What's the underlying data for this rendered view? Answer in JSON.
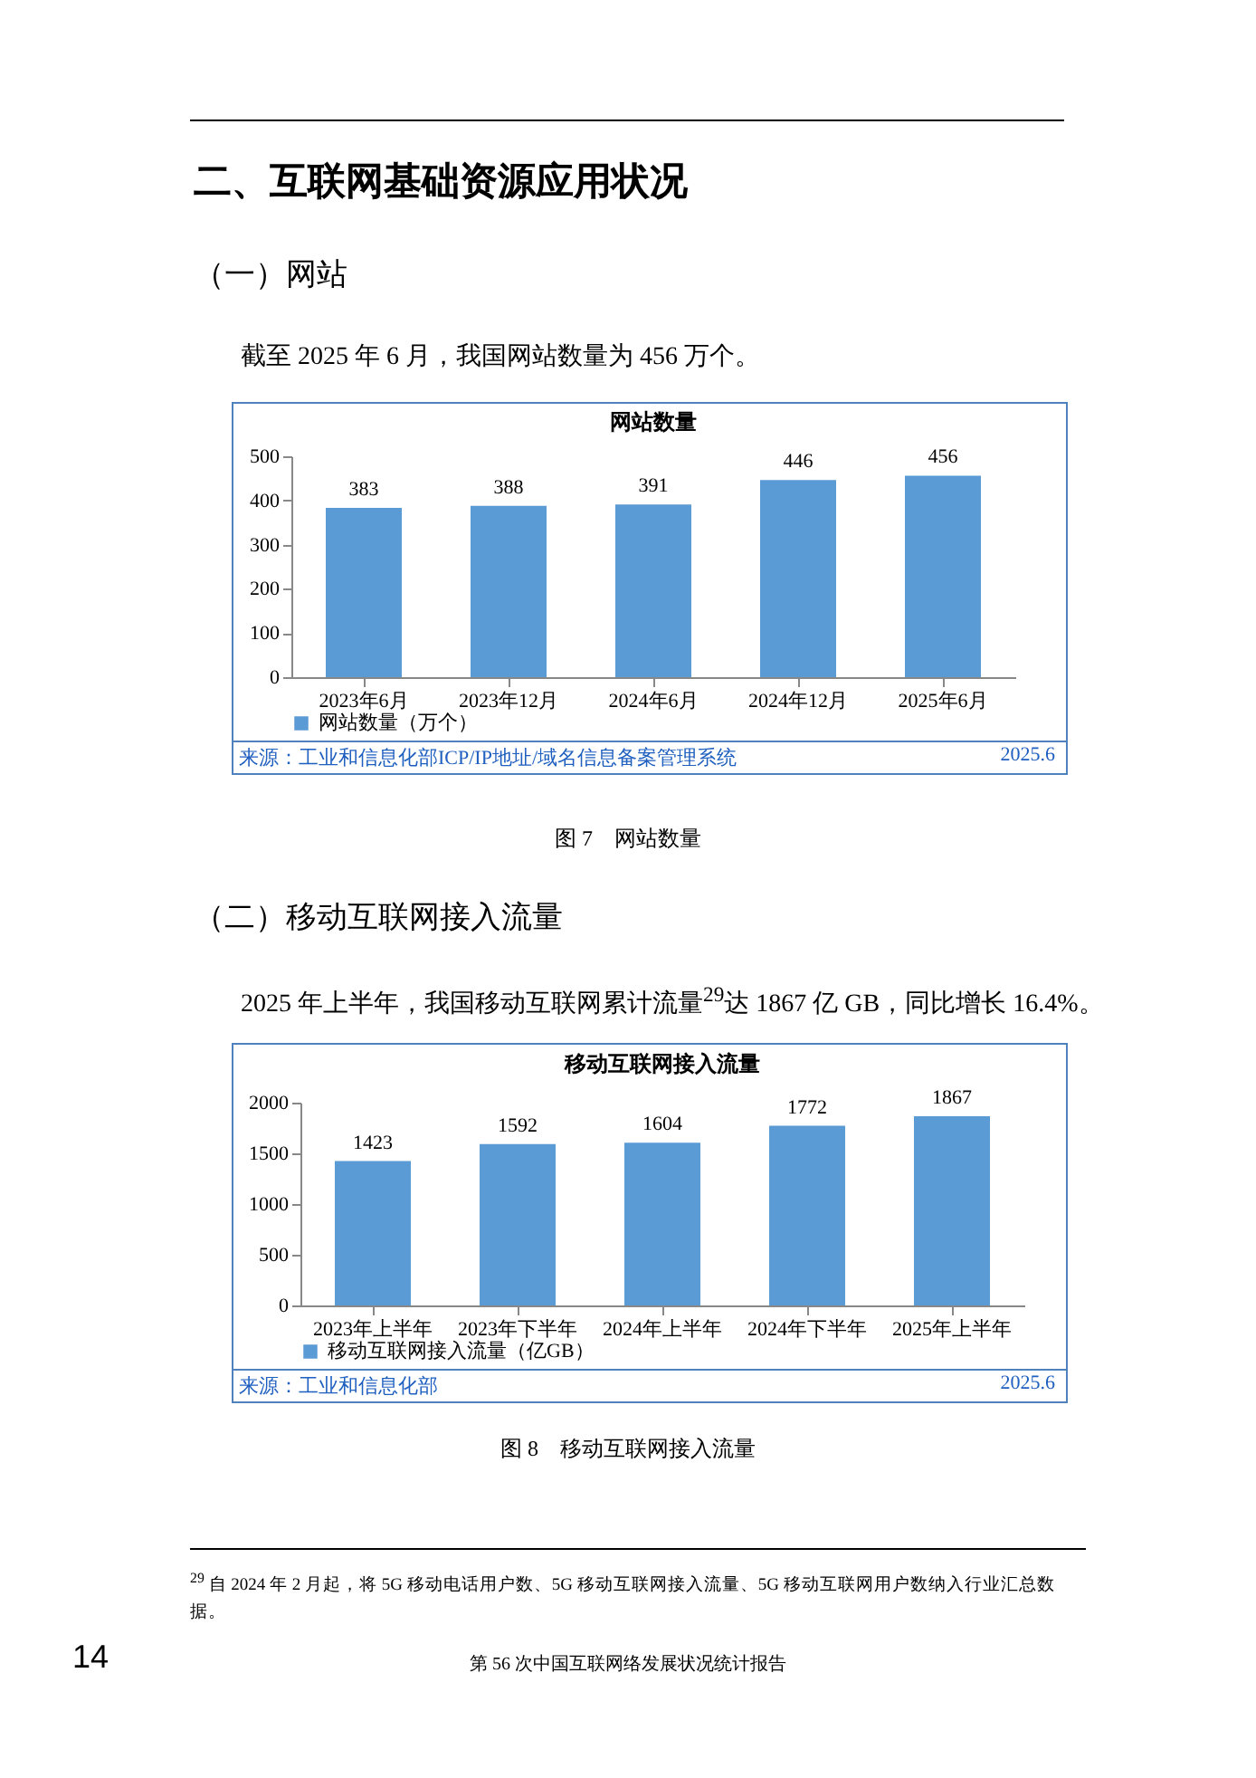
{
  "chart_data": [
    {
      "type": "bar",
      "title": "网站数量",
      "categories": [
        "2023年6月",
        "2023年12月",
        "2024年6月",
        "2024年12月",
        "2025年6月"
      ],
      "series": [
        {
          "name": "网站数量（万个）",
          "color": "#5b9bd5",
          "values": [
            383,
            388,
            391,
            446,
            456
          ]
        }
      ],
      "ylim": [
        0,
        500
      ],
      "yticks": [
        0,
        100,
        200,
        300,
        400,
        500
      ],
      "grid": false,
      "legend": "bottom",
      "data_labels": true,
      "annotations": [
        "二、互联网基础资源应用状况",
        "（一）网站",
        "截至 2025 年 6 月，我国网站数量为 456 万个。",
        "来源：工业和信息化部ICP/IP地址/域名信息备案管理系统",
        "2025.6",
        "图 7　网站数量"
      ]
    },
    {
      "type": "bar",
      "title": "移动互联网接入流量",
      "categories": [
        "2023年上半年",
        "2023年下半年",
        "2024年上半年",
        "2024年下半年",
        "2025年上半年"
      ],
      "series": [
        {
          "name": "移动互联网接入流量（亿GB）",
          "color": "#5b9bd5",
          "values": [
            1423,
            1592,
            1604,
            1772,
            1867
          ]
        }
      ],
      "ylim": [
        0,
        2000
      ],
      "yticks": [
        0,
        500,
        1000,
        1500,
        2000
      ],
      "grid": false,
      "legend": "bottom",
      "data_labels": true,
      "annotations": [
        "（二）移动互联网接入流量",
        "2025 年上半年，我国移动互联网累计流量$^{29}$达 1867 亿 GB，同比增长 16.4%。",
        "来源：工业和信息化部",
        "2025.6",
        "图 8　移动互联网接入流量",
        "$^{29}$ 自 2024 年 2 月起，将 5G 移动电话用户数、5G 移动互联网接入流量、5G 移动互联网用户数纳入行业汇总数据。",
        "14",
        "第 56 次中国互联网络发展状况统计报告"
      ]
    }
  ]
}
